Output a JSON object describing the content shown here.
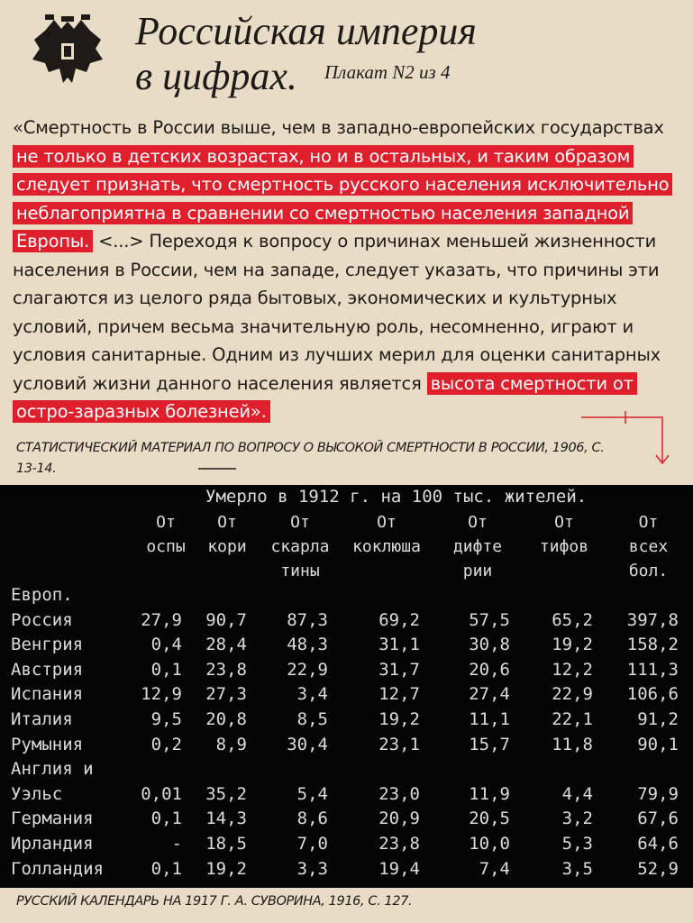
{
  "header": {
    "title_lines": [
      "Российская империя",
      "в цифрах."
    ],
    "subtitle": "Плакат N2 из 4"
  },
  "quote": {
    "segments": [
      {
        "text": "«Смертность в России выше, чем в западно-европейских государствах ",
        "highlight": false
      },
      {
        "text": "не только в детских возрастах, но и в остальных, и таким образом следует признать, что смертность русского населения исключительно неблагоприятна в сравнении со смертностью населения западной Европы.",
        "highlight": true
      },
      {
        "text": " <...> Переходя к вопросу о причинах меньшей жизненности населения в России, чем на западе, следует указать, что причины эти слагаются из целого ряда бытовых, экономических и культурных условий, причем весьма значительную роль, несомненно, играют и условия санитарные. Одним из лучших мерил для оценки санитарных условий жизни данного населения является ",
        "highlight": false
      },
      {
        "text": "высота смертности от остро-заразных болезней».",
        "highlight": true
      }
    ],
    "source": "СТАТИСТИЧЕСКИЙ МАТЕРИАЛ ПО ВОПРОСУ О ВЫСОКОЙ СМЕРТНОСТИ В РОССИИ, 1906, С. 13-14."
  },
  "table": {
    "caption": "Умерло в 1912 г. на 100 тыс. жителей.",
    "columns": [
      "От\nоспы",
      "От\nкори",
      "От\nскарла\nтины",
      "От\nкоклюша",
      "От\nдифте\nрии",
      "От\nтифов",
      "От\nвсех\nбол."
    ],
    "rows": [
      [
        "Европ.\nРоссия",
        "27,9",
        "90,7",
        "87,3",
        "69,2",
        "57,5",
        "65,2",
        "397,8"
      ],
      [
        "Венгрия",
        "0,4",
        "28,4",
        "48,3",
        "31,1",
        "30,8",
        "19,2",
        "158,2"
      ],
      [
        "Австрия",
        "0,1",
        "23,8",
        "22,9",
        "31,7",
        "20,6",
        "12,2",
        "111,3"
      ],
      [
        "Испания",
        "12,9",
        "27,3",
        "3,4",
        "12,7",
        "27,4",
        "22,9",
        "106,6"
      ],
      [
        "Италия",
        "9,5",
        "20,8",
        "8,5",
        "19,2",
        "11,1",
        "22,1",
        "91,2"
      ],
      [
        "Румыния",
        "0,2",
        "8,9",
        "30,4",
        "23,1",
        "15,7",
        "11,8",
        "90,1"
      ],
      [
        "Англия и\nУэльс",
        "0,01",
        "35,2",
        "5,4",
        "23,0",
        "11,9",
        "4,4",
        "79,9"
      ],
      [
        "Германия",
        "0,1",
        "14,3",
        "8,6",
        "20,9",
        "20,5",
        "3,2",
        "67,6"
      ],
      [
        "Ирландия",
        "-",
        "18,5",
        "7,0",
        "23,8",
        "10,0",
        "5,3",
        "64,6"
      ],
      [
        "Голландия",
        "0,1",
        "19,2",
        "3,3",
        "19,4",
        "7,4",
        "3,5",
        "52,9"
      ]
    ]
  },
  "footer": {
    "source": "РУССКИЙ КАЛЕНДАРЬ НА 1917 Г. А. СУВОРИНА, 1916, С. 127."
  }
}
